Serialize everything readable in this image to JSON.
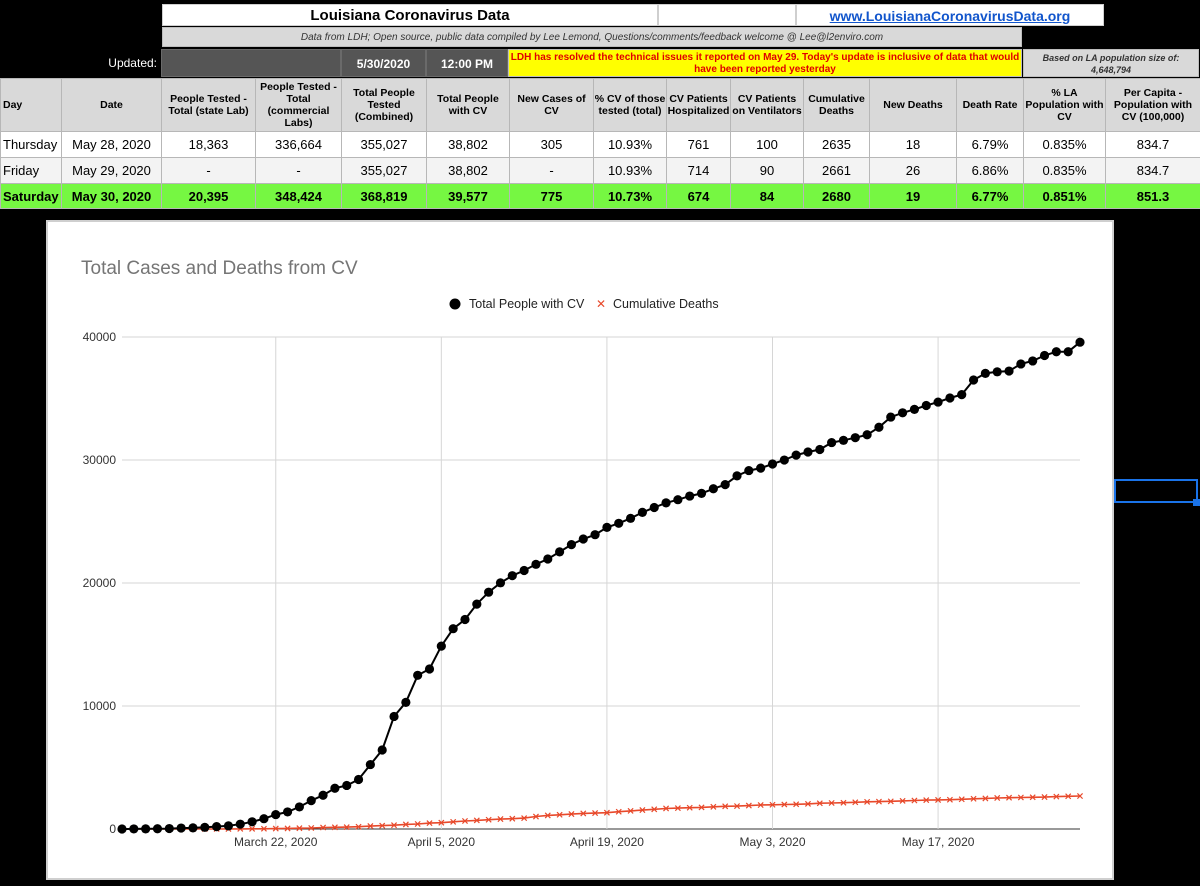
{
  "sheet": {
    "title": "Louisiana Coronavirus Data",
    "url": "www.LouisianaCoronavirusData.org",
    "source_note": "Data from LDH; Open source, public data compiled by Lee Lemond, Questions/comments/feedback welcome @ Lee@l2enviro.com",
    "updated_label": "Updated:",
    "updated_date": "5/30/2020",
    "updated_time": "12:00 PM",
    "notice": "LDH has resolved the technical issues it reported on May 29. Today's update is inclusive of data that would have been reported yesterday",
    "population_note": "Based on LA population size of: 4,648,794"
  },
  "table": {
    "headers": [
      "Day",
      "Date",
      "People Tested - Total (state Lab)",
      "People Tested - Total (commercial Labs)",
      "Total People Tested (Combined)",
      "Total People with CV",
      "New Cases of CV",
      "% CV of those tested (total)",
      "CV Patients Hospitalized",
      "CV Patients on Ventilators",
      "Cumulative Deaths",
      "New Deaths",
      "Death Rate",
      "% LA Population with CV",
      "Per Capita - Population with CV (100,000)"
    ],
    "rows": [
      [
        "Thursday",
        "May 28, 2020",
        "18,363",
        "336,664",
        "355,027",
        "38,802",
        "305",
        "10.93%",
        "761",
        "100",
        "2635",
        "18",
        "6.79%",
        "0.835%",
        "834.7"
      ],
      [
        "Friday",
        "May 29, 2020",
        "-",
        "-",
        "355,027",
        "38,802",
        "-",
        "10.93%",
        "714",
        "90",
        "2661",
        "26",
        "6.86%",
        "0.835%",
        "834.7"
      ],
      [
        "Saturday",
        "May 30, 2020",
        "20,395",
        "348,424",
        "368,819",
        "39,577",
        "775",
        "10.73%",
        "674",
        "84",
        "2680",
        "19",
        "6.77%",
        "0.851%",
        "851.3"
      ]
    ]
  },
  "colors": {
    "highlight_row": "#76f742",
    "notice_bg": "#ffff00",
    "notice_text": "#e00000",
    "cases_series": "#000000",
    "deaths_series": "#e8492b",
    "selection": "#1a73e8"
  },
  "chart_data": {
    "type": "line",
    "title": "Total Cases and Deaths from CV",
    "legend_position": "top",
    "grid": true,
    "x_start": "2020-03-09",
    "x_ticks": [
      "March 22, 2020",
      "April 5, 2020",
      "April 19, 2020",
      "May 3, 2020",
      "May 17, 2020"
    ],
    "ylim": [
      0,
      40000
    ],
    "y_ticks": [
      "0",
      "10000",
      "20000",
      "30000",
      "40000"
    ],
    "series": [
      {
        "name": "Total People with CV",
        "marker": "circle",
        "values": [
          1,
          6,
          13,
          19,
          36,
          77,
          91,
          136,
          196,
          257,
          392,
          585,
          837,
          1172,
          1388,
          1795,
          2305,
          2746,
          3315,
          3540,
          4025,
          5237,
          6424,
          9150,
          10297,
          12496,
          13010,
          14867,
          16284,
          17030,
          18283,
          19253,
          20014,
          20595,
          21016,
          21518,
          21951,
          22532,
          23118,
          23580,
          23928,
          24523,
          24854,
          25258,
          25739,
          26140,
          26512,
          26773,
          27068,
          27286,
          27660,
          28001,
          28711,
          29140,
          29340,
          29673,
          29996,
          30399,
          30652,
          30855,
          31417,
          31600,
          31815,
          32050,
          32662,
          33489,
          33837,
          34117,
          34432,
          34709,
          35038,
          35316,
          36504,
          37040,
          37169,
          37231,
          37809,
          38054,
          38497,
          38802,
          38802,
          39577
        ]
      },
      {
        "name": "Cumulative Deaths",
        "marker": "x",
        "values": [
          0,
          0,
          0,
          0,
          0,
          2,
          2,
          3,
          4,
          7,
          10,
          16,
          20,
          34,
          46,
          65,
          83,
          119,
          137,
          151,
          185,
          239,
          273,
          310,
          370,
          409,
          477,
          512,
          582,
          652,
          702,
          755,
          806,
          840,
          884,
          1013,
          1103,
          1156,
          1213,
          1267,
          1296,
          1328,
          1405,
          1473,
          1540,
          1599,
          1670,
          1697,
          1729,
          1758,
          1802,
          1845,
          1862,
          1905,
          1950,
          1969,
          1991,
          2012,
          2042,
          2094,
          2115,
          2135,
          2172,
          2208,
          2227,
          2248,
          2286,
          2315,
          2347,
          2364,
          2381,
          2417,
          2458,
          2485,
          2524,
          2544,
          2563,
          2581,
          2596,
          2635,
          2661,
          2680
        ]
      }
    ]
  }
}
